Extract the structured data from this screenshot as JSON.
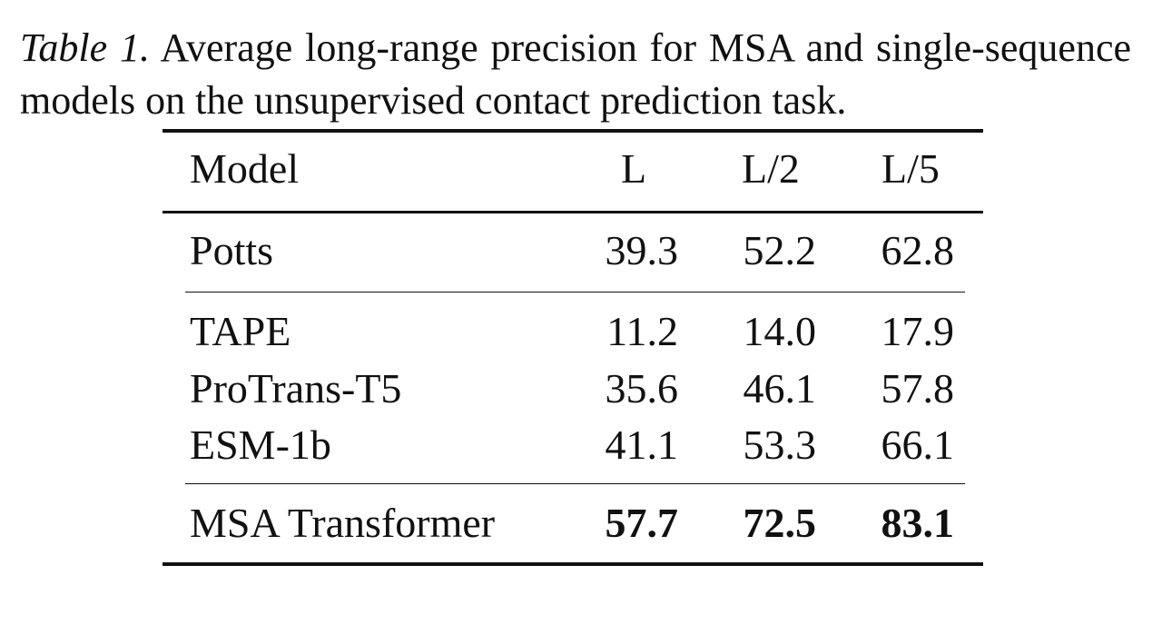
{
  "caption": {
    "label": "Table 1.",
    "text": "Average long-range precision for MSA and single-sequence models on the unsupervised contact prediction task."
  },
  "table": {
    "columns": [
      "Model",
      "L",
      "L/2",
      "L/5"
    ],
    "groups": [
      {
        "rows": [
          {
            "model": "Potts",
            "L": "39.3",
            "L2": "52.2",
            "L5": "62.8"
          }
        ]
      },
      {
        "rows": [
          {
            "model": "TAPE",
            "L": "11.2",
            "L2": "14.0",
            "L5": "17.9"
          },
          {
            "model": "ProTrans-T5",
            "L": "35.6",
            "L2": "46.1",
            "L5": "57.8"
          },
          {
            "model": "ESM-1b",
            "L": "41.1",
            "L2": "53.3",
            "L5": "66.1"
          }
        ]
      },
      {
        "rows": [
          {
            "model": "MSA Transformer",
            "L": "57.7",
            "L2": "72.5",
            "L5": "83.1",
            "bold": true
          }
        ]
      }
    ]
  }
}
